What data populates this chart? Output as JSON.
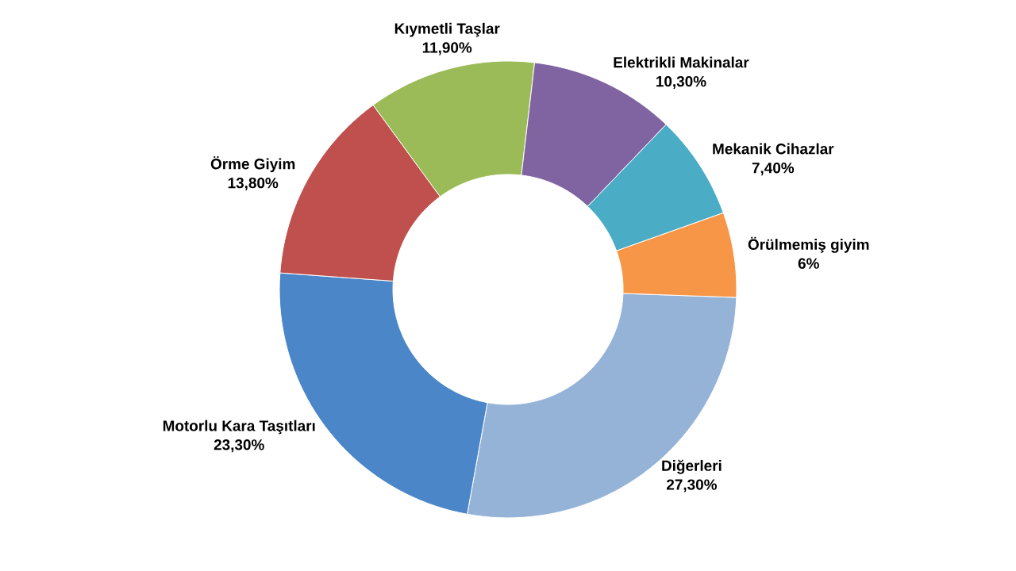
{
  "chart_data": {
    "type": "donut",
    "categories": [
      "Diğerleri",
      "Motorlu Kara Taşıtları",
      "Örme Giyim",
      "Kıymetli Taşlar",
      "Elektrikli Makinalar",
      "Mekanik Cihazlar",
      "Örülmemiş giyim"
    ],
    "values": [
      27.3,
      23.3,
      13.8,
      11.9,
      10.3,
      7.4,
      6
    ],
    "value_labels": [
      "27,30%",
      "23,30%",
      "13,80%",
      "11,90%",
      "10,30%",
      "7,40%",
      "6%"
    ],
    "colors": [
      "#95b3d7",
      "#4a86c8",
      "#c0504d",
      "#9bbb59",
      "#8064a2",
      "#4bacc6",
      "#f79646"
    ]
  }
}
